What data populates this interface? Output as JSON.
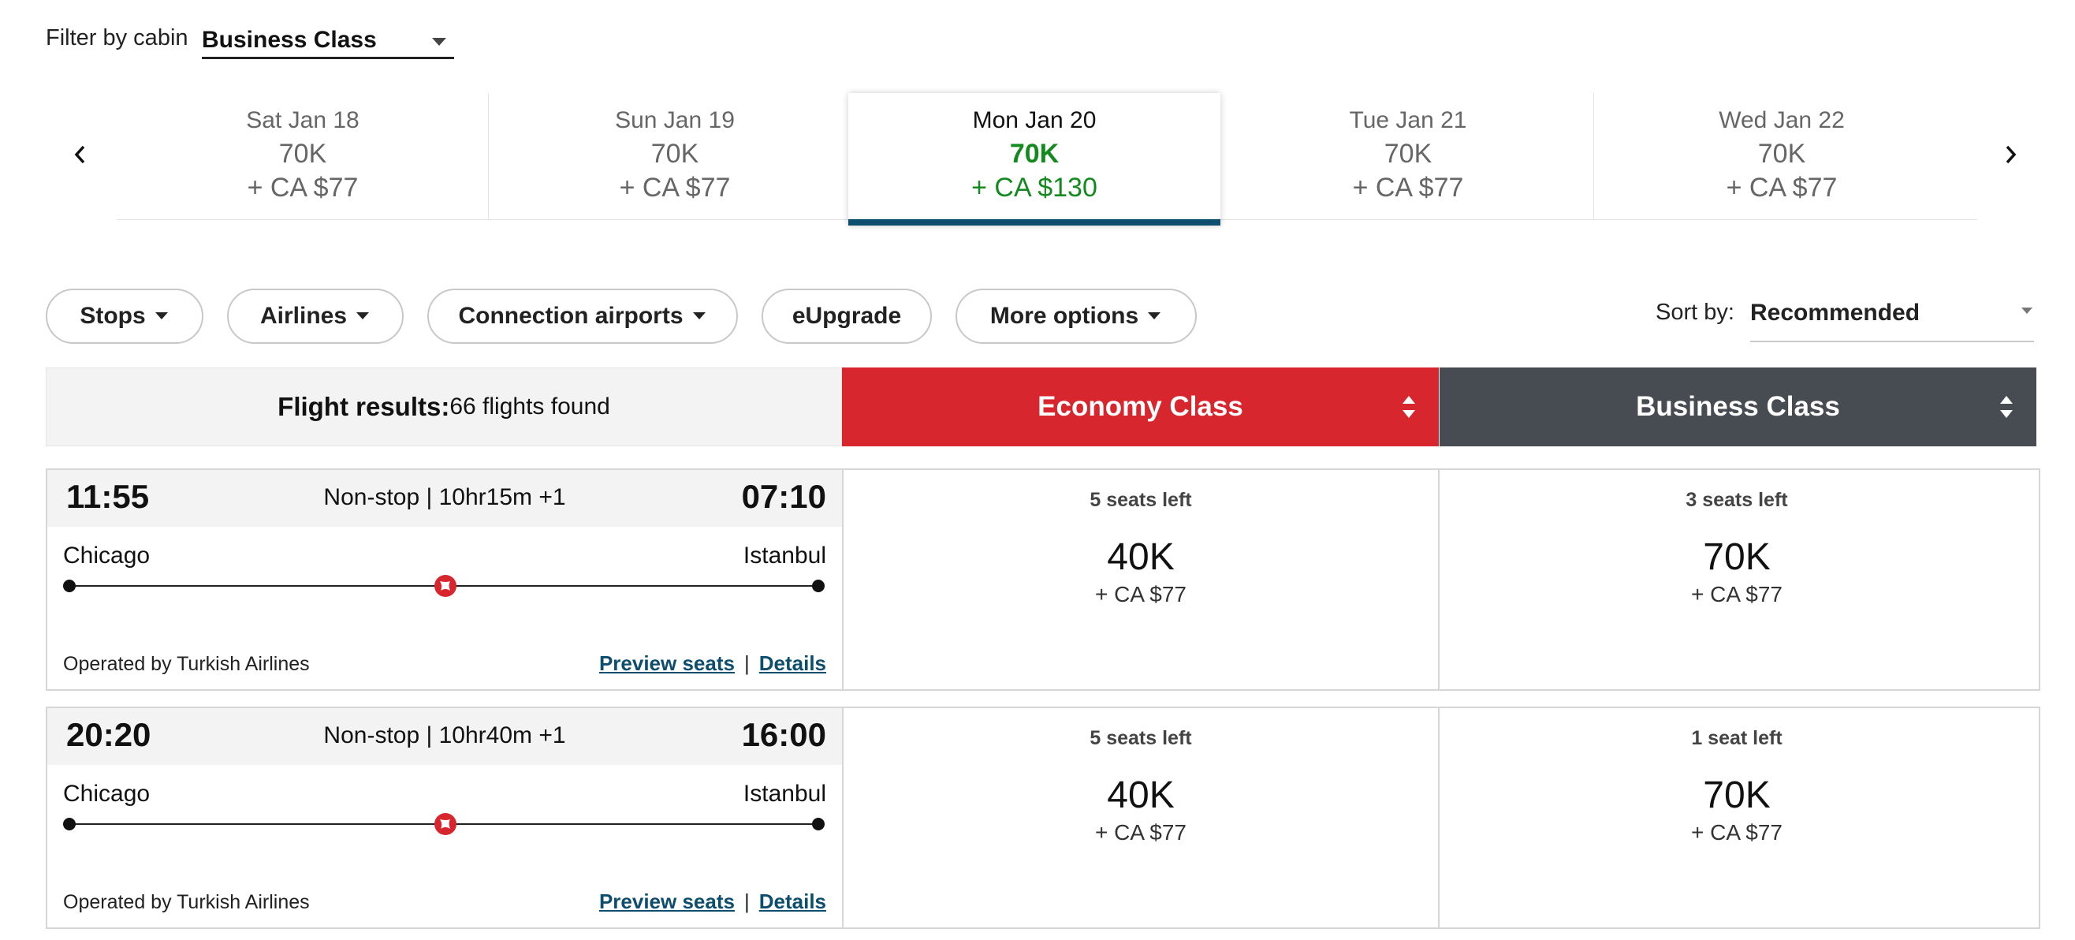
{
  "filter": {
    "label": "Filter by cabin",
    "value": "Business Class"
  },
  "dates": [
    {
      "date": "Sat Jan 18",
      "points": "70K",
      "taxes": "+ CA $77"
    },
    {
      "date": "Sun Jan 19",
      "points": "70K",
      "taxes": "+ CA $77"
    },
    {
      "date": "Mon Jan 20",
      "points": "70K",
      "taxes": "+ CA $130"
    },
    {
      "date": "Tue Jan 21",
      "points": "70K",
      "taxes": "+ CA $77"
    },
    {
      "date": "Wed Jan 22",
      "points": "70K",
      "taxes": "+ CA $77"
    }
  ],
  "selected_date_index": 2,
  "pills": {
    "stops": "Stops",
    "airlines": "Airlines",
    "connection": "Connection airports",
    "eupgrade": "eUpgrade",
    "more": "More options"
  },
  "sort": {
    "label": "Sort by:",
    "value": "Recommended"
  },
  "results": {
    "label": "Flight results:",
    "count": "66 flights found"
  },
  "columns": {
    "economy": "Economy Class",
    "business": "Business Class"
  },
  "colors": {
    "economy": "#d8262e",
    "business": "#474c52",
    "selected_price": "#138a1e",
    "link": "#0d4d6e"
  },
  "flights": [
    {
      "dep": "11:55",
      "arr": "07:10",
      "summary": "Non-stop | 10hr15m +1",
      "from": "Chicago",
      "to": "Istanbul",
      "operator": "Operated by Turkish Airlines",
      "airline_icon": "turkish-airlines-logo",
      "preview": "Preview seats",
      "sep": "|",
      "details": "Details",
      "economy": {
        "seats": "5 seats left",
        "points": "40K",
        "taxes": "+ CA $77"
      },
      "business": {
        "seats": "3 seats left",
        "points": "70K",
        "taxes": "+ CA $77"
      }
    },
    {
      "dep": "20:20",
      "arr": "16:00",
      "summary": "Non-stop | 10hr40m +1",
      "from": "Chicago",
      "to": "Istanbul",
      "operator": "Operated by Turkish Airlines",
      "airline_icon": "turkish-airlines-logo",
      "preview": "Preview seats",
      "sep": "|",
      "details": "Details",
      "economy": {
        "seats": "5 seats left",
        "points": "40K",
        "taxes": "+ CA $77"
      },
      "business": {
        "seats": "1 seat left",
        "points": "70K",
        "taxes": "+ CA $77"
      }
    }
  ]
}
